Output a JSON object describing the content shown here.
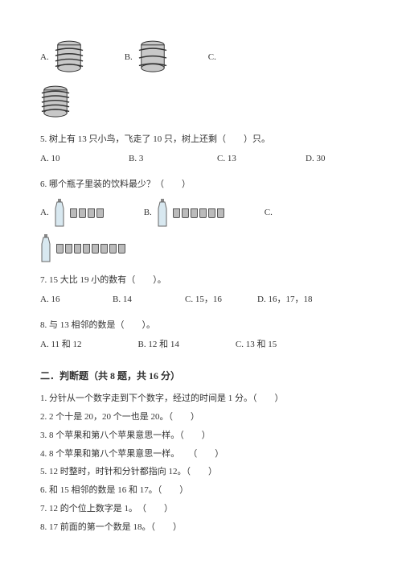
{
  "q4": {
    "optA": "A.",
    "optB": "B.",
    "optC": "C."
  },
  "q5": {
    "text": "5. 树上有 13 只小鸟，飞走了 10 只，树上还剩（　　）只。",
    "a": "A. 10",
    "b": "B. 3",
    "c": "C. 13",
    "d": "D. 30"
  },
  "q6": {
    "text": "6. 哪个瓶子里装的饮料最少？（　　）",
    "optA": "A.",
    "optB": "B.",
    "optC": "C.",
    "cupsA": 4,
    "cupsB": 6,
    "cupsC": 8
  },
  "q7": {
    "text": "7. 15 大比 19 小的数有（　　）。",
    "a": "A. 16",
    "b": "B. 14",
    "c": "C. 15，16",
    "d": "D. 16，17，18"
  },
  "q8": {
    "text": "8. 与 13 相邻的数是（　　）。",
    "a": "A. 11 和 12",
    "b": "B. 12 和 14",
    "c": "C. 13 和 15"
  },
  "section2": {
    "title": "二．判断题（共 8 题，共 16 分）",
    "items": [
      "1. 分针从一个数字走到下个数字，经过的时间是 1 分。（　　）",
      "2. 2 个十是 20，20 个一也是 20。（　　）",
      "3. 8 个苹果和第八个苹果意思一样。（　　）",
      "4. 8 个苹果和第八个苹果意思一样。　　（　　）",
      "5. 12 时整时，时针和分针都指向 12。（　　）",
      "6. 和 15 相邻的数是 16 和 17。（　　）",
      "7. 12 的个位上数字是 1。　（　　）",
      "8. 17 前面的第一个数是 18。（　　）"
    ]
  },
  "colors": {
    "cylinder_fill": "#c8c8c8",
    "cylinder_stroke": "#333",
    "wire_stroke": "#333",
    "bottle_fill": "#d8e8f0",
    "bottle_stroke": "#666"
  }
}
